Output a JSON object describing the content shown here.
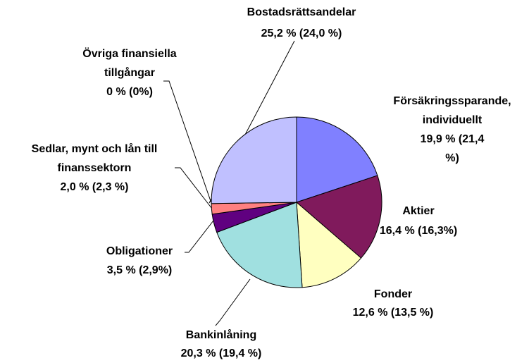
{
  "chart_data": {
    "type": "pie",
    "categories": [
      "Försäkringssparande,\nindividuellt",
      "Aktier",
      "Fonder",
      "Bankinlåning",
      "Obligationer",
      "Sedlar, mynt och lån till\nfinanssektorn",
      "Övriga finansiella\ntillgångar",
      "Bostadsrättsandelar"
    ],
    "values": [
      19.9,
      16.4,
      12.6,
      20.3,
      3.5,
      2.0,
      0,
      25.2
    ],
    "value_labels": [
      "19,9 % (21,4 %)",
      "16,4 % (16,3%)",
      "12,6 % (13,5 %)",
      "20,3 % (19,4 %)",
      "3,5 % (2,9%)",
      "2,0 % (2,3 %)",
      "0 % (0%)",
      "25,2 % (24,0 %)"
    ],
    "colors": [
      "#8080ff",
      "#801a5c",
      "#ffffc0",
      "#a0e0e0",
      "#600080",
      "#ff8080",
      "#0066cc",
      "#c0c0ff"
    ]
  }
}
